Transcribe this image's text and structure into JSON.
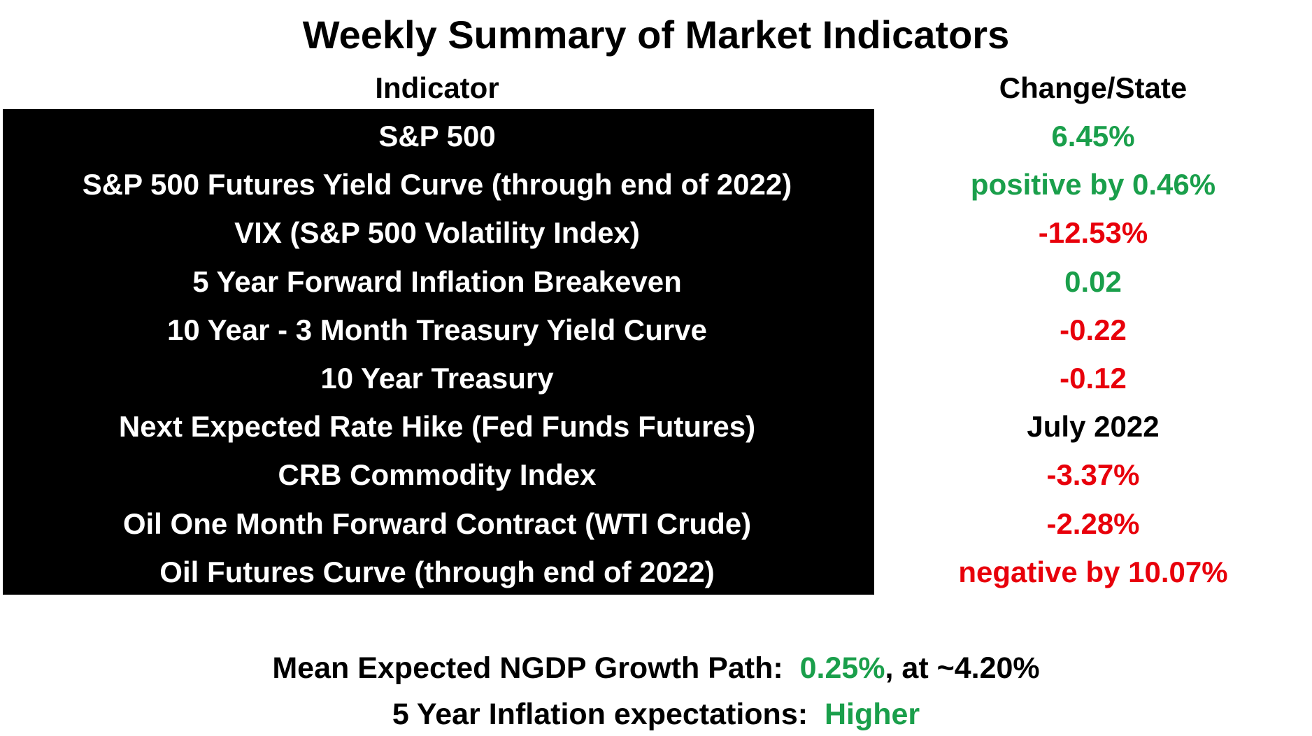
{
  "title": "Weekly Summary of Market Indicators",
  "headers": {
    "indicator": "Indicator",
    "change": "Change/State"
  },
  "colors": {
    "green": "#1a9f4b",
    "red": "#e8000b",
    "black": "#000000"
  },
  "rows": [
    {
      "indicator": "S&P 500",
      "value": "6.45%",
      "color": "#1a9f4b"
    },
    {
      "indicator": "S&P 500 Futures Yield Curve (through end of 2022)",
      "value": "positive by 0.46%",
      "color": "#1a9f4b"
    },
    {
      "indicator": "VIX (S&P 500 Volatility Index)",
      "value": "-12.53%",
      "color": "#e8000b"
    },
    {
      "indicator": "5 Year Forward Inflation Breakeven",
      "value": "0.02",
      "color": "#1a9f4b"
    },
    {
      "indicator": "10 Year  - 3 Month Treasury Yield Curve",
      "value": "-0.22",
      "color": "#e8000b"
    },
    {
      "indicator": "10 Year Treasury",
      "value": "-0.12",
      "color": "#e8000b"
    },
    {
      "indicator": "Next Expected Rate Hike (Fed Funds Futures)",
      "value": "July 2022",
      "color": "#000000"
    },
    {
      "indicator": "CRB Commodity Index",
      "value": "-3.37%",
      "color": "#e8000b"
    },
    {
      "indicator": "Oil One Month Forward Contract (WTI Crude)",
      "value": "-2.28%",
      "color": "#e8000b"
    },
    {
      "indicator": "Oil Futures Curve (through end of 2022)",
      "value": "negative by 10.07%",
      "color": "#e8000b"
    }
  ],
  "footer": {
    "ngdp": {
      "label": "Mean Expected NGDP Growth Path:",
      "change": "0.25%",
      "suffix": ", at ~4.20%"
    },
    "inflation": {
      "label": "5 Year Inflation expectations:",
      "value": "Higher"
    }
  }
}
